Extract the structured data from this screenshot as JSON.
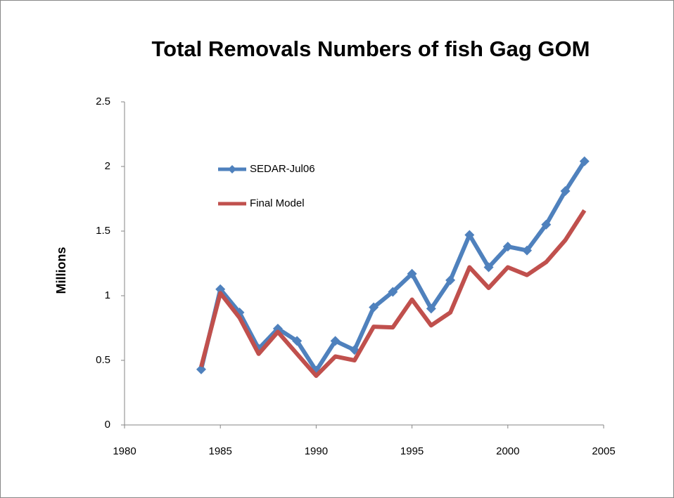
{
  "chart_data": {
    "type": "line",
    "title": "Total Removals Numbers of fish Gag GOM",
    "y_label": "Millions",
    "x": [
      1984,
      1985,
      1986,
      1987,
      1988,
      1989,
      1990,
      1991,
      1992,
      1993,
      1994,
      1995,
      1996,
      1997,
      1998,
      1999,
      2000,
      2001,
      2002,
      2003,
      2004
    ],
    "series": [
      {
        "name": "SEDAR-Jul06",
        "color": "#4f81bd",
        "marker": "diamond",
        "values": [
          0.43,
          1.05,
          0.87,
          0.59,
          0.745,
          0.65,
          0.42,
          0.65,
          0.58,
          0.91,
          1.03,
          1.17,
          0.9,
          1.12,
          1.47,
          1.22,
          1.38,
          1.35,
          1.55,
          1.81,
          2.04
        ]
      },
      {
        "name": "Final Model",
        "color": "#c0504d",
        "marker": "none",
        "values": [
          0.45,
          1.02,
          0.83,
          0.55,
          0.72,
          0.55,
          0.38,
          0.53,
          0.5,
          0.76,
          0.755,
          0.97,
          0.77,
          0.87,
          1.22,
          1.06,
          1.22,
          1.16,
          1.26,
          1.43,
          1.66
        ]
      }
    ],
    "xlim": [
      1980,
      2005
    ],
    "xticks": [
      1980,
      1985,
      1990,
      1995,
      2000,
      2005
    ],
    "ylim": [
      0,
      2.5
    ],
    "yticks": [
      0,
      0.5,
      1,
      1.5,
      2,
      2.5
    ],
    "grid": false,
    "legend": "upper left"
  }
}
